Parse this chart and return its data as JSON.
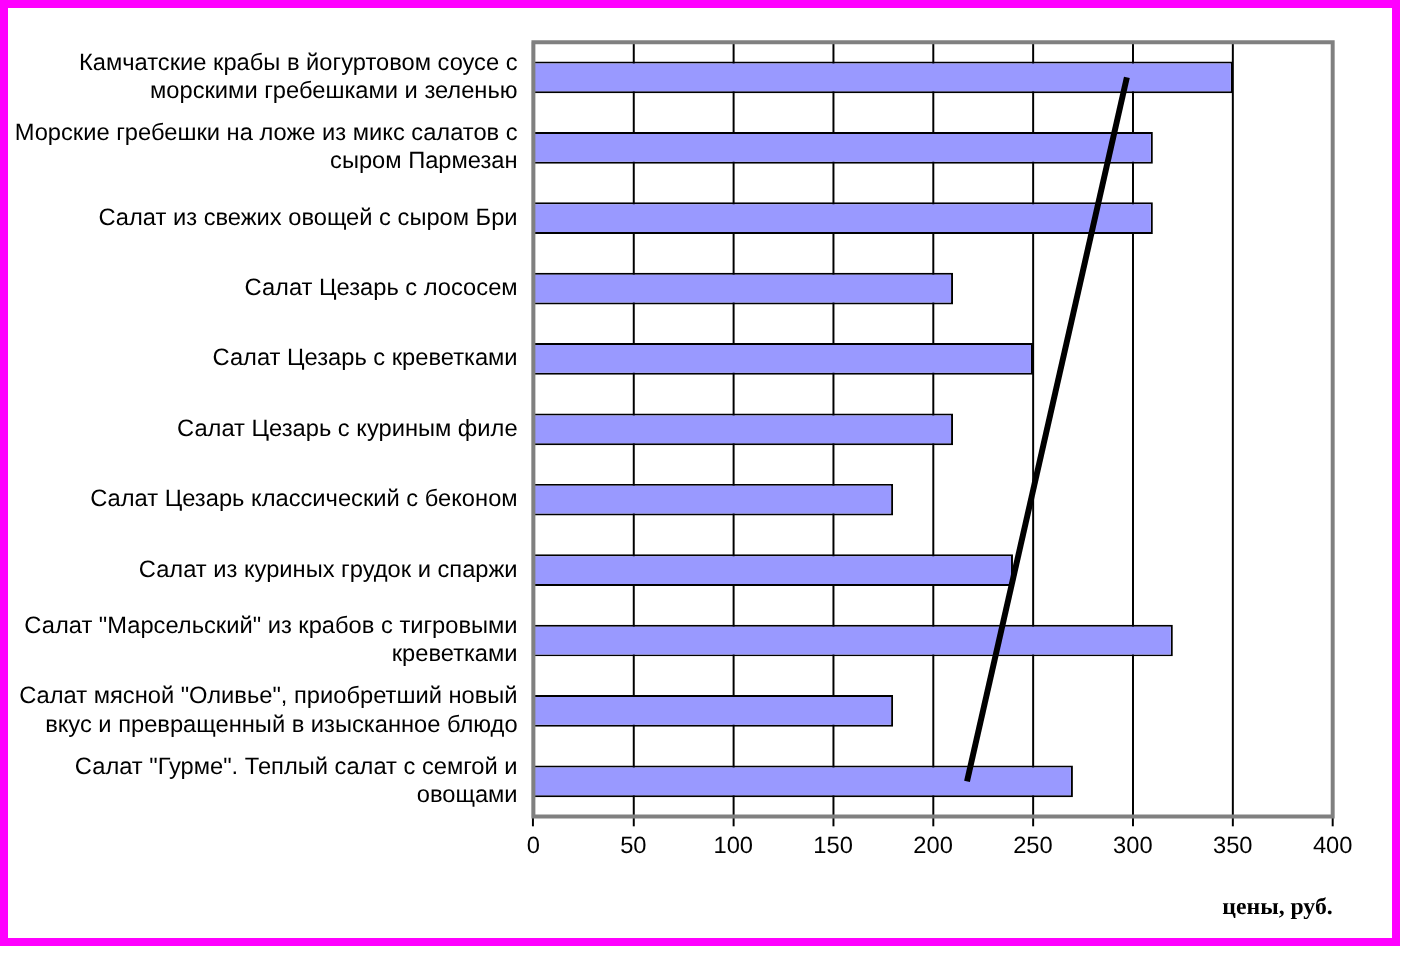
{
  "chart_data": {
    "type": "bar",
    "orientation": "horizontal",
    "xlabel": "цены, руб.",
    "categories": [
      "Камчатские крабы в йогуртовом соусе с морскими гребешками и зеленью",
      "Морские гребешки на ложе из микс салатов с сыром Пармезан",
      "Салат из свежих овощей с сыром Бри",
      "Салат Цезарь с лососем",
      "Салат Цезарь с креветками",
      "Салат Цезарь с куриным филе",
      "Салат Цезарь классический с беконом",
      "Салат из куриных грудок и спаржи",
      "Салат \"Марсельский\" из крабов с тигровыми креветками",
      "Салат мясной \"Оливье\", приобретший новый вкус и превращенный в изысканное блюдо",
      "Салат \"Гурме\". Теплый салат с семгой и овощами"
    ],
    "series": [
      {
        "color": "#9999ff",
        "values": [
          350,
          310,
          310,
          210,
          250,
          210,
          180,
          240,
          320,
          180,
          270
        ]
      },
      {
        "type": "line",
        "color": "#000000",
        "values": [
          297,
          null,
          null,
          null,
          null,
          null,
          null,
          null,
          null,
          null,
          217
        ]
      }
    ],
    "xlim": [
      0,
      400
    ],
    "xticks": [
      0,
      50,
      100,
      150,
      200,
      250,
      300,
      350,
      400
    ],
    "grid": "x",
    "legend": false
  }
}
